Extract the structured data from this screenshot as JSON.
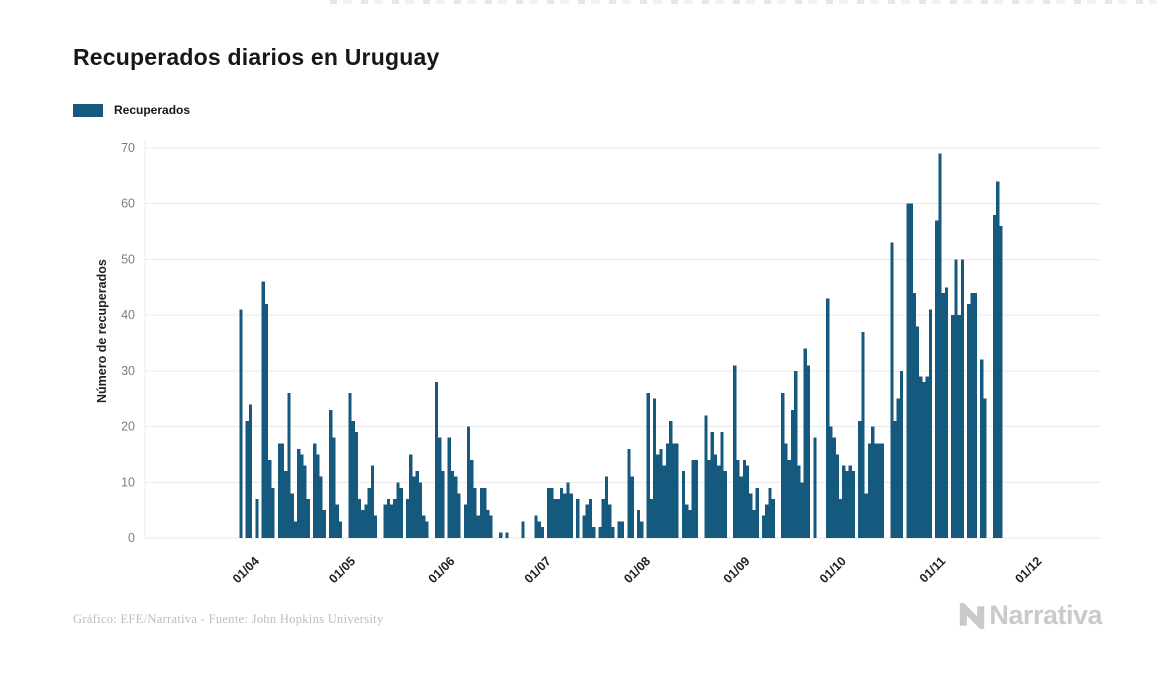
{
  "page": {
    "title": "Recuperados diarios en Uruguay",
    "legend": {
      "label": "Recuperados",
      "swatch_color": "#155A7E"
    },
    "footer": {
      "credit": "Gráfico: EFE/Narrativa - Fuente: John Hopkins University",
      "brand": "Narrativa"
    }
  },
  "chart_data": {
    "type": "bar",
    "title": "Recuperados diarios en Uruguay",
    "series_name": "Recuperados",
    "xlabel": "",
    "ylabel": "Número de recuperados",
    "ylim": [
      0,
      70
    ],
    "yticks": [
      0,
      10,
      20,
      30,
      40,
      50,
      60,
      70
    ],
    "grid": true,
    "legend_position": "top-left",
    "bar_color": "#155A7E",
    "gridline_color": "#ebebee",
    "x_tick_labels": [
      "01/04",
      "01/05",
      "01/06",
      "01/07",
      "01/08",
      "01/09",
      "01/10",
      "01/11",
      "01/12"
    ],
    "x_tick_day_index": [
      5,
      35,
      66,
      96,
      127,
      158,
      188,
      219,
      249
    ],
    "values": [
      0,
      41,
      0,
      21,
      24,
      0,
      7,
      0,
      46,
      42,
      14,
      9,
      0,
      17,
      17,
      12,
      26,
      8,
      3,
      16,
      15,
      13,
      7,
      0,
      17,
      15,
      11,
      5,
      0,
      23,
      18,
      6,
      3,
      0,
      0,
      26,
      21,
      19,
      7,
      5,
      6,
      9,
      13,
      4,
      0,
      0,
      6,
      7,
      6,
      7,
      10,
      9,
      0,
      7,
      15,
      11,
      12,
      10,
      4,
      3,
      0,
      0,
      28,
      18,
      12,
      0,
      18,
      12,
      11,
      8,
      0,
      6,
      20,
      14,
      9,
      4,
      9,
      9,
      5,
      4,
      0,
      0,
      1,
      0,
      1,
      0,
      0,
      0,
      0,
      3,
      0,
      0,
      0,
      4,
      3,
      2,
      0,
      9,
      9,
      7,
      7,
      9,
      8,
      10,
      8,
      0,
      7,
      0,
      4,
      6,
      7,
      2,
      0,
      2,
      7,
      11,
      6,
      2,
      0,
      3,
      3,
      0,
      16,
      11,
      0,
      5,
      3,
      0,
      26,
      7,
      25,
      15,
      16,
      13,
      17,
      21,
      17,
      17,
      0,
      12,
      6,
      5,
      14,
      14,
      0,
      0,
      22,
      14,
      19,
      15,
      13,
      19,
      12,
      0,
      0,
      31,
      14,
      11,
      14,
      13,
      8,
      5,
      9,
      0,
      4,
      6,
      9,
      7,
      0,
      0,
      26,
      17,
      14,
      23,
      30,
      13,
      10,
      34,
      31,
      0,
      18,
      0,
      0,
      0,
      43,
      20,
      18,
      15,
      7,
      13,
      12,
      13,
      12,
      0,
      21,
      37,
      8,
      17,
      20,
      17,
      17,
      17,
      0,
      0,
      53,
      21,
      25,
      30,
      0,
      60,
      60,
      44,
      38,
      29,
      28,
      29,
      41,
      0,
      57,
      69,
      44,
      45,
      0,
      40,
      50,
      40,
      50,
      0,
      42,
      44,
      44,
      0,
      32,
      25,
      0,
      0,
      58,
      64,
      56
    ]
  }
}
